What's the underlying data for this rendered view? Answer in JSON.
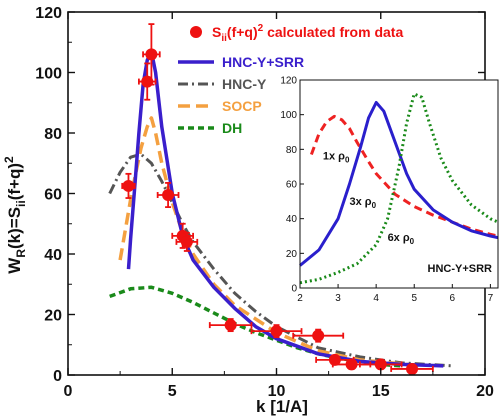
{
  "chart_data": [
    {
      "type": "line",
      "xlabel": "k [1/A]",
      "ylabel_main": "W",
      "ylabel_sub": "R",
      "ylabel_rest": "(k)=S",
      "ylabel_sub2": "ii",
      "ylabel_tail": "(f+q)",
      "ylabel_sup": "2",
      "xlim": [
        0,
        20
      ],
      "ylim": [
        0,
        120
      ],
      "xticks": [
        "0",
        "5",
        "10",
        "15",
        "20"
      ],
      "yticks": [
        "0",
        "20",
        "40",
        "60",
        "80",
        "100",
        "120"
      ],
      "legend_position": "top-right",
      "scatter": {
        "name_main": "S",
        "name_sub": "ii",
        "name_rest": "(f+q)",
        "name_sup": "2",
        "name_tail": " calculated from data",
        "color": "#ee1111",
        "points": [
          {
            "x": 2.9,
            "y": 62.5,
            "xerr": 0.3,
            "yerr": 4
          },
          {
            "x": 3.8,
            "y": 97,
            "xerr": 0.4,
            "yerr": 6
          },
          {
            "x": 4.0,
            "y": 106,
            "xerr": 0.4,
            "yerr": 10
          },
          {
            "x": 4.8,
            "y": 59.5,
            "xerr": 0.5,
            "yerr": 4
          },
          {
            "x": 5.5,
            "y": 46,
            "xerr": 0.5,
            "yerr": 4
          },
          {
            "x": 5.7,
            "y": 44,
            "xerr": 0.5,
            "yerr": 3
          },
          {
            "x": 7.8,
            "y": 16.5,
            "xerr": 1.0,
            "yerr": 2
          },
          {
            "x": 10.0,
            "y": 14.5,
            "xerr": 1.2,
            "yerr": 2
          },
          {
            "x": 12.0,
            "y": 13,
            "xerr": 1.2,
            "yerr": 2
          },
          {
            "x": 12.8,
            "y": 5,
            "xerr": 0.9,
            "yerr": 1.5
          },
          {
            "x": 13.6,
            "y": 3.5,
            "xerr": 0.9,
            "yerr": 1.5
          },
          {
            "x": 15.0,
            "y": 3.5,
            "xerr": 1.0,
            "yerr": 1.5
          },
          {
            "x": 16.5,
            "y": 2,
            "xerr": 1.0,
            "yerr": 1.5
          }
        ]
      },
      "series": [
        {
          "name": "HNC-Y+SRR",
          "color": "#3a1fcc",
          "dash": "none",
          "width": 3.5,
          "x": [
            2.9,
            3.0,
            3.2,
            3.4,
            3.6,
            3.8,
            4.0,
            4.2,
            4.5,
            5.0,
            5.5,
            6.0,
            7.0,
            8.0,
            9.0,
            10.0,
            12.0,
            14.0,
            16.0,
            18.0
          ],
          "y": [
            35,
            45,
            62,
            80,
            96,
            104,
            107,
            100,
            82,
            60,
            46,
            38,
            29,
            22,
            16,
            12,
            7,
            4.5,
            3.5,
            3
          ]
        },
        {
          "name": "HNC-Y",
          "color": "#555555",
          "dash": "10,4,2,4",
          "width": 3,
          "x": [
            2.0,
            2.5,
            3.0,
            3.5,
            4.0,
            4.5,
            5.0,
            5.5,
            6.0,
            7.0,
            8.0,
            9.0,
            10.0,
            12.0,
            14.0,
            16.0,
            18.5
          ],
          "y": [
            60,
            67,
            72,
            73,
            70,
            64,
            57,
            50,
            44,
            35,
            27,
            21,
            16,
            9,
            6,
            4,
            3
          ]
        },
        {
          "name": "SOCP",
          "color": "#f4a040",
          "dash": "12,6",
          "width": 3.5,
          "x": [
            2.5,
            2.8,
            3.0,
            3.2,
            3.5,
            3.8,
            4.0,
            4.2,
            4.5,
            5.0,
            5.5,
            6.0,
            7.0,
            8.0,
            10.0,
            12.0,
            14.0,
            17.0
          ],
          "y": [
            38,
            50,
            58,
            65,
            75,
            82,
            85,
            80,
            70,
            57,
            47,
            40,
            30,
            23,
            14,
            8,
            5,
            3
          ]
        },
        {
          "name": "DH",
          "color": "#1a8a1a",
          "dash": "6,4",
          "width": 3.5,
          "x": [
            2.0,
            3.0,
            4.0,
            5.0,
            6.0,
            7.0,
            8.0,
            9.0,
            10.0,
            11.0,
            12.0,
            13.0,
            14.0,
            15.0,
            16.0
          ],
          "y": [
            26,
            28.5,
            29,
            27,
            24,
            20.5,
            17,
            14,
            11.5,
            9,
            7,
            5.5,
            4.5,
            3.5,
            3
          ]
        }
      ]
    },
    {
      "type": "line",
      "title": "HNC-Y+SRR",
      "xlim": [
        2,
        7.2
      ],
      "ylim": [
        0,
        120
      ],
      "xticks": [
        "2",
        "3",
        "4",
        "5",
        "6",
        "7"
      ],
      "yticks": [
        "0",
        "20",
        "40",
        "60",
        "80",
        "100",
        "120"
      ],
      "series": [
        {
          "name": "1x ρ0",
          "color": "#ee2222",
          "dash": "8,5",
          "width": 3,
          "x": [
            2.3,
            2.5,
            2.7,
            2.9,
            3.1,
            3.3,
            3.5,
            3.8,
            4.0,
            4.5,
            5.0,
            5.5,
            6.0,
            6.5,
            7.0,
            7.2
          ],
          "y": [
            77,
            89,
            96,
            99,
            97,
            92,
            84,
            73,
            66,
            54,
            47,
            42,
            38,
            34,
            31,
            30
          ]
        },
        {
          "name": "3x ρ0",
          "color": "#2a1fcc",
          "dash": "none",
          "width": 3,
          "x": [
            2.0,
            2.5,
            3.0,
            3.3,
            3.6,
            3.8,
            4.0,
            4.2,
            4.5,
            4.8,
            5.0,
            5.5,
            6.0,
            6.5,
            7.0,
            7.2
          ],
          "y": [
            13,
            22,
            40,
            60,
            82,
            98,
            107,
            102,
            84,
            66,
            57,
            45,
            38,
            33,
            30,
            29
          ]
        },
        {
          "name": "6x ρ0",
          "color": "#1a8a1a",
          "dash": "2,3",
          "width": 3,
          "x": [
            2.0,
            2.5,
            3.0,
            3.5,
            4.0,
            4.3,
            4.6,
            4.8,
            5.0,
            5.2,
            5.4,
            5.7,
            6.0,
            6.5,
            7.0,
            7.2
          ],
          "y": [
            3,
            5,
            9,
            14,
            25,
            40,
            70,
            95,
            112,
            110,
            95,
            75,
            62,
            48,
            40,
            38
          ]
        }
      ],
      "labels": [
        {
          "series": 0,
          "prefix": "1x ρ",
          "sub": "0",
          "at_x": 2.6,
          "at_y": 74
        },
        {
          "series": 1,
          "prefix": "3x ρ",
          "sub": "0",
          "at_x": 3.3,
          "at_y": 48
        },
        {
          "series": 2,
          "prefix": "6x ρ",
          "sub": "0",
          "at_x": 4.3,
          "at_y": 27
        }
      ]
    }
  ]
}
